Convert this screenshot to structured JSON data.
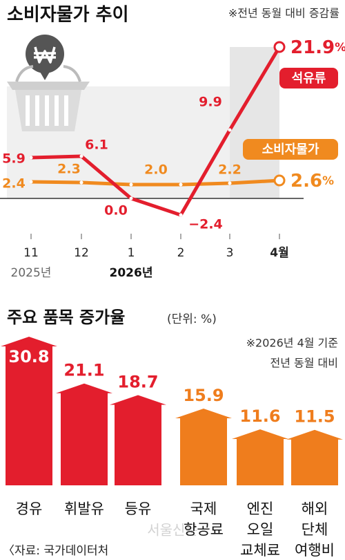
{
  "chart_data": [
    {
      "type": "line",
      "title": "소비자물가 추이",
      "note": "※전년 동월 대비 증감률",
      "categories": [
        "11",
        "12",
        "1",
        "2",
        "3",
        "4월"
      ],
      "annotations": [
        "2025년",
        "2026년"
      ],
      "series": [
        {
          "name": "석유류",
          "color": "#e31e2d",
          "values": [
            5.9,
            6.1,
            0.0,
            -2.4,
            9.9,
            21.9
          ],
          "value_labels": [
            "5.9",
            "6.1",
            "0.0",
            "−2.4",
            "9.9",
            "21.9%"
          ]
        },
        {
          "name": "소비자물가",
          "color": "#f08a1f",
          "values": [
            2.4,
            2.3,
            2.0,
            2.0,
            2.2,
            2.6
          ],
          "value_labels": [
            "2.4",
            "2.3",
            "2.0",
            null,
            "2.2",
            "2.6%"
          ]
        }
      ]
    },
    {
      "type": "bar",
      "title": "주요 품목 증가율",
      "unit": "(단위: %)",
      "notes": [
        "※2026년 4월 기준",
        "전년 동월 대비"
      ],
      "categories": [
        [
          "경유"
        ],
        [
          "휘발유"
        ],
        [
          "등유"
        ],
        [
          "국제",
          "항공료"
        ],
        [
          "엔진",
          "오일",
          "교체료"
        ],
        [
          "해외",
          "단체",
          "여행비"
        ]
      ],
      "values": [
        30.8,
        21.1,
        18.7,
        15.9,
        11.6,
        11.5
      ],
      "colors": [
        "#e31e2d",
        "#e31e2d",
        "#e31e2d",
        "#ef7d1d",
        "#ef7d1d",
        "#ef7d1d"
      ]
    }
  ],
  "source": "〈자료: 국가데이터처",
  "watermark": "서울신문"
}
